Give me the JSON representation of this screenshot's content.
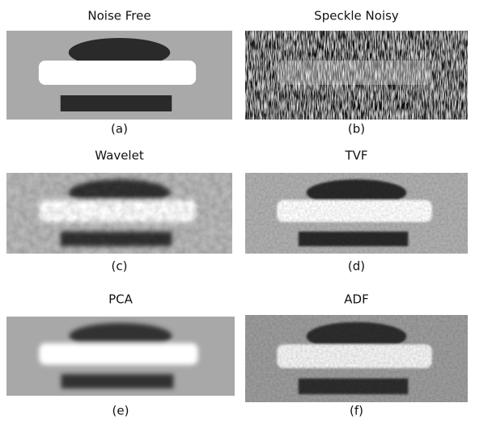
{
  "panels": [
    {
      "title": "Noise Free",
      "caption": "(a)"
    },
    {
      "title": "Speckle Noisy",
      "caption": "(b)"
    },
    {
      "title": "Wavelet",
      "caption": "(c)"
    },
    {
      "title": "TVF",
      "caption": "(d)"
    },
    {
      "title": "PCA",
      "caption": "(e)"
    },
    {
      "title": "ADF",
      "caption": "(f)"
    }
  ]
}
